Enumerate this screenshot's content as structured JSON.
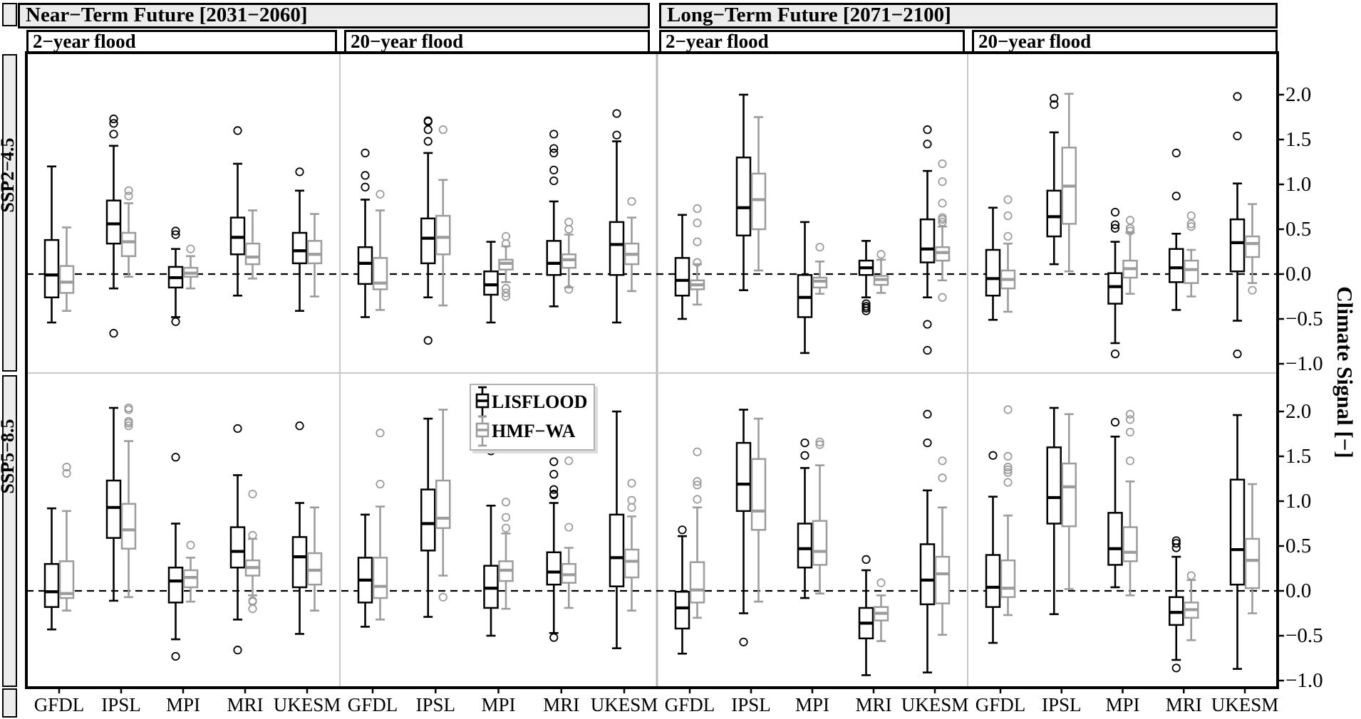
{
  "headers": {
    "near_term": "Near−Term Future [2031−2060]",
    "long_term": "Long−Term Future [2071−2100]"
  },
  "subheaders": [
    "2−year flood",
    "20−year flood",
    "2−year flood",
    "20−year flood"
  ],
  "row_labels": [
    "SSP2−4.5",
    "SSP5−8.5"
  ],
  "colors": {
    "strip_bg": "#ececec",
    "panel_separator": "#c8c8c8",
    "zero_line": "#000000",
    "series_black": "#000000",
    "series_gray": "#9c9c9c"
  },
  "chart_data": {
    "type": "boxplot",
    "orientation": "vertical",
    "grid": "off",
    "models": [
      "GFDL",
      "IPSL",
      "MPI",
      "MRI",
      "UKESM"
    ],
    "columns": [
      "Near-Term 2-year flood",
      "Near-Term 20-year flood",
      "Long-Term 2-year flood",
      "Long-Term 20-year flood"
    ],
    "rows": [
      "SSP2−4.5",
      "SSP5−8.5"
    ],
    "y_axis": {
      "title": "Climate Signal [−]",
      "tick_labels": [
        "2.0",
        "1.5",
        "1.0",
        "0.5",
        "0.0",
        "−0.5",
        "−1.0"
      ],
      "tick_values": [
        2.0,
        1.5,
        1.0,
        0.5,
        0.0,
        -0.5,
        -1.0
      ],
      "row_range": [
        -1.1,
        2.45
      ],
      "zero_reference_line": 0.0
    },
    "series": [
      {
        "name": "LISFLOOD",
        "key": "lisflood",
        "color": "#000000"
      },
      {
        "name": "HMF−WA",
        "key": "hmf_wa",
        "color": "#9c9c9c"
      }
    ],
    "box_format": [
      "whislo",
      "q1",
      "med",
      "q3",
      "whishi",
      "outliers"
    ],
    "panels": [
      {
        "scenario": "SSP2−4.5",
        "period": "Near-Term Future [2031-2060]",
        "flood": "2−year flood",
        "lisflood": [
          [
            -0.54,
            -0.26,
            -0.01,
            0.38,
            1.2,
            []
          ],
          [
            -0.16,
            0.34,
            0.56,
            0.82,
            1.43,
            [
              1.73,
              1.68,
              1.56,
              -0.66
            ]
          ],
          [
            -0.48,
            -0.15,
            -0.04,
            0.08,
            0.28,
            [
              0.48,
              0.44,
              -0.53
            ]
          ],
          [
            -0.24,
            0.22,
            0.41,
            0.63,
            1.23,
            [
              1.6
            ]
          ],
          [
            -0.41,
            0.12,
            0.26,
            0.46,
            0.93,
            [
              1.14
            ]
          ]
        ],
        "hmf_wa": [
          [
            -0.41,
            -0.21,
            -0.09,
            0.09,
            0.52,
            []
          ],
          [
            -0.03,
            0.2,
            0.36,
            0.46,
            0.79,
            [
              0.93,
              0.87
            ]
          ],
          [
            -0.16,
            -0.03,
            0.01,
            0.07,
            0.2,
            [
              0.28
            ]
          ],
          [
            -0.05,
            0.11,
            0.19,
            0.34,
            0.71,
            []
          ],
          [
            -0.25,
            0.12,
            0.22,
            0.37,
            0.67,
            []
          ]
        ]
      },
      {
        "scenario": "SSP2−4.5",
        "period": "Near-Term Future [2031-2060]",
        "flood": "20−year flood",
        "lisflood": [
          [
            -0.48,
            -0.11,
            0.12,
            0.3,
            0.83,
            [
              1.35,
              1.1,
              0.97
            ]
          ],
          [
            -0.26,
            0.12,
            0.4,
            0.62,
            1.35,
            [
              1.71,
              1.7,
              1.61,
              1.48,
              -0.74
            ]
          ],
          [
            -0.54,
            -0.23,
            -0.12,
            0.03,
            0.36,
            []
          ],
          [
            -0.36,
            -0.01,
            0.12,
            0.37,
            0.81,
            [
              1.56,
              1.4,
              1.35,
              1.16,
              1.04
            ]
          ],
          [
            -0.54,
            -0.01,
            0.33,
            0.58,
            1.48,
            [
              1.79,
              1.55
            ]
          ]
        ],
        "hmf_wa": [
          [
            -0.4,
            -0.17,
            -0.1,
            0.18,
            0.71,
            [
              0.89
            ]
          ],
          [
            -0.35,
            0.22,
            0.41,
            0.65,
            1.05,
            [
              1.61
            ]
          ],
          [
            -0.09,
            0.05,
            0.12,
            0.16,
            0.31,
            [
              0.42,
              0.34,
              -0.16,
              -0.21,
              -0.25
            ]
          ],
          [
            -0.15,
            0.07,
            0.16,
            0.22,
            0.44,
            [
              0.58,
              0.5,
              -0.17
            ]
          ],
          [
            -0.19,
            0.11,
            0.22,
            0.34,
            0.63,
            [
              0.81
            ]
          ]
        ]
      },
      {
        "scenario": "SSP2−4.5",
        "period": "Long-Term Future [2071-2100]",
        "flood": "2−year flood",
        "lisflood": [
          [
            -0.5,
            -0.24,
            -0.07,
            0.18,
            0.66,
            []
          ],
          [
            -0.18,
            0.43,
            0.74,
            1.3,
            2.0,
            []
          ],
          [
            -0.88,
            -0.48,
            -0.26,
            -0.01,
            0.58,
            []
          ],
          [
            -0.26,
            -0.01,
            0.07,
            0.15,
            0.37,
            [
              -0.33,
              -0.36,
              -0.38,
              -0.41
            ]
          ],
          [
            -0.26,
            0.13,
            0.28,
            0.61,
            1.15,
            [
              1.61,
              1.45,
              -0.56,
              -0.85
            ]
          ]
        ],
        "hmf_wa": [
          [
            -0.34,
            -0.17,
            -0.12,
            -0.07,
            0.11,
            [
              0.73,
              0.57,
              0.36,
              0.13
            ]
          ],
          [
            0.04,
            0.5,
            0.83,
            1.12,
            1.75,
            []
          ],
          [
            -0.22,
            -0.15,
            -0.08,
            -0.04,
            0.14,
            [
              0.3
            ]
          ],
          [
            -0.21,
            -0.12,
            -0.06,
            -0.02,
            0.16,
            [
              0.22
            ]
          ],
          [
            -0.07,
            0.15,
            0.24,
            0.3,
            0.53,
            [
              1.23,
              1.03,
              0.79,
              0.63,
              0.61,
              0.58,
              -0.26
            ]
          ]
        ]
      },
      {
        "scenario": "SSP2−4.5",
        "period": "Long-Term Future [2071-2100]",
        "flood": "20−year flood",
        "lisflood": [
          [
            -0.51,
            -0.24,
            -0.05,
            0.27,
            0.74,
            []
          ],
          [
            0.11,
            0.42,
            0.64,
            0.93,
            1.58,
            [
              1.96,
              1.89
            ]
          ],
          [
            -0.77,
            -0.33,
            -0.14,
            0.01,
            0.36,
            [
              0.69,
              0.55,
              0.51,
              -0.89
            ]
          ],
          [
            -0.4,
            -0.09,
            0.07,
            0.28,
            0.45,
            [
              1.35,
              0.87
            ]
          ],
          [
            -0.52,
            0.03,
            0.35,
            0.61,
            1.01,
            [
              1.98,
              1.54,
              -0.89
            ]
          ]
        ],
        "hmf_wa": [
          [
            -0.42,
            -0.16,
            -0.06,
            0.04,
            0.34,
            [
              0.83,
              0.65,
              0.42
            ]
          ],
          [
            0.03,
            0.56,
            0.98,
            1.41,
            2.01,
            []
          ],
          [
            -0.22,
            -0.04,
            0.06,
            0.15,
            0.46,
            [
              0.6,
              0.51,
              0.48
            ]
          ],
          [
            -0.25,
            -0.1,
            0.05,
            0.15,
            0.27,
            [
              0.65,
              0.56,
              0.53
            ]
          ],
          [
            -0.1,
            0.19,
            0.34,
            0.42,
            0.78,
            [
              -0.18
            ]
          ]
        ]
      },
      {
        "scenario": "SSP5−8.5",
        "period": "Near-Term Future [2031-2060]",
        "flood": "2−year flood",
        "lisflood": [
          [
            -0.43,
            -0.18,
            -0.01,
            0.3,
            0.92,
            []
          ],
          [
            -0.11,
            0.59,
            0.93,
            1.23,
            2.04,
            []
          ],
          [
            -0.54,
            -0.13,
            0.11,
            0.26,
            0.75,
            [
              1.49,
              -0.73
            ]
          ],
          [
            -0.32,
            0.26,
            0.44,
            0.71,
            1.29,
            [
              1.81,
              -0.66
            ]
          ],
          [
            -0.48,
            0.04,
            0.38,
            0.6,
            0.98,
            [
              1.84
            ]
          ]
        ],
        "hmf_wa": [
          [
            -0.22,
            -0.08,
            -0.03,
            0.33,
            0.89,
            [
              1.38,
              1.31
            ]
          ],
          [
            -0.07,
            0.47,
            0.68,
            0.97,
            1.67,
            [
              2.04,
              2.02,
              1.89,
              1.87,
              1.84
            ]
          ],
          [
            -0.12,
            0.04,
            0.15,
            0.23,
            0.37,
            [
              0.51
            ]
          ],
          [
            -0.05,
            0.17,
            0.26,
            0.34,
            0.58,
            [
              1.08,
              0.62,
              -0.11,
              -0.12,
              -0.2
            ]
          ],
          [
            -0.22,
            0.07,
            0.23,
            0.42,
            0.93,
            []
          ]
        ]
      },
      {
        "scenario": "SSP5−8.5",
        "period": "Near-Term Future [2031-2060]",
        "flood": "20−year flood",
        "lisflood": [
          [
            -0.4,
            -0.13,
            0.12,
            0.37,
            0.85,
            []
          ],
          [
            -0.29,
            0.45,
            0.75,
            1.13,
            1.92,
            []
          ],
          [
            -0.5,
            -0.19,
            0.03,
            0.28,
            0.95,
            [
              1.56
            ]
          ],
          [
            -0.47,
            0.07,
            0.21,
            0.43,
            0.98,
            [
              1.44,
              1.3,
              1.13,
              1.08,
              1.07,
              -0.52
            ]
          ],
          [
            -0.64,
            0.05,
            0.37,
            0.85,
            2.0,
            []
          ]
        ],
        "hmf_wa": [
          [
            -0.32,
            -0.08,
            0.05,
            0.37,
            0.94,
            [
              1.76,
              1.19
            ]
          ],
          [
            0.17,
            0.7,
            0.81,
            1.23,
            2.02,
            [
              -0.07
            ]
          ],
          [
            -0.2,
            0.11,
            0.23,
            0.33,
            0.64,
            [
              0.99,
              0.82,
              0.7
            ]
          ],
          [
            -0.19,
            0.09,
            0.18,
            0.3,
            0.48,
            [
              1.45,
              0.71
            ]
          ],
          [
            -0.22,
            0.15,
            0.33,
            0.46,
            0.83,
            [
              1.2,
              1.01,
              0.93
            ]
          ]
        ]
      },
      {
        "scenario": "SSP5−8.5",
        "period": "Long-Term Future [2071-2100]",
        "flood": "2−year flood",
        "lisflood": [
          [
            -0.7,
            -0.42,
            -0.19,
            -0.01,
            0.61,
            [
              0.68
            ]
          ],
          [
            -0.25,
            0.89,
            1.19,
            1.65,
            2.02,
            [
              -0.57
            ]
          ],
          [
            -0.08,
            0.26,
            0.47,
            0.75,
            1.37,
            [
              1.65,
              1.51
            ]
          ],
          [
            -0.94,
            -0.53,
            -0.36,
            -0.19,
            0.23,
            [
              0.35
            ]
          ],
          [
            -0.91,
            -0.15,
            0.12,
            0.52,
            1.12,
            [
              1.97,
              1.65
            ]
          ]
        ],
        "hmf_wa": [
          [
            -0.3,
            -0.13,
            0.01,
            0.32,
            0.93,
            [
              1.55,
              1.22,
              1.18,
              1.02
            ]
          ],
          [
            -0.12,
            0.68,
            0.89,
            1.47,
            1.92,
            []
          ],
          [
            -0.03,
            0.29,
            0.44,
            0.78,
            1.4,
            [
              1.66,
              1.63
            ]
          ],
          [
            -0.56,
            -0.33,
            -0.25,
            -0.18,
            -0.05,
            [
              0.09
            ]
          ],
          [
            -0.49,
            -0.14,
            0.19,
            0.38,
            0.93,
            [
              1.45,
              1.26
            ]
          ]
        ]
      },
      {
        "scenario": "SSP5−8.5",
        "period": "Long-Term Future [2071-2100]",
        "flood": "20−year flood",
        "lisflood": [
          [
            -0.58,
            -0.18,
            0.04,
            0.4,
            1.05,
            [
              1.51
            ]
          ],
          [
            -0.26,
            0.75,
            1.04,
            1.6,
            2.04,
            []
          ],
          [
            0.04,
            0.29,
            0.47,
            0.87,
            1.72,
            [
              1.88
            ]
          ],
          [
            -0.77,
            -0.38,
            -0.24,
            -0.07,
            0.38,
            [
              0.56,
              0.53,
              0.48,
              -0.86
            ]
          ],
          [
            -0.87,
            0.07,
            0.46,
            1.24,
            1.96,
            []
          ]
        ],
        "hmf_wa": [
          [
            -0.27,
            -0.07,
            0.03,
            0.34,
            0.84,
            [
              2.02,
              1.5,
              1.38,
              1.35,
              1.32,
              1.21
            ]
          ],
          [
            0.02,
            0.72,
            1.16,
            1.42,
            1.97,
            []
          ],
          [
            -0.05,
            0.33,
            0.43,
            0.71,
            1.22,
            [
              1.97,
              1.91,
              1.77,
              1.45
            ]
          ],
          [
            -0.55,
            -0.3,
            -0.21,
            -0.13,
            0.12,
            [
              0.17
            ]
          ],
          [
            -0.25,
            0.03,
            0.34,
            0.58,
            1.19,
            []
          ]
        ]
      }
    ]
  }
}
